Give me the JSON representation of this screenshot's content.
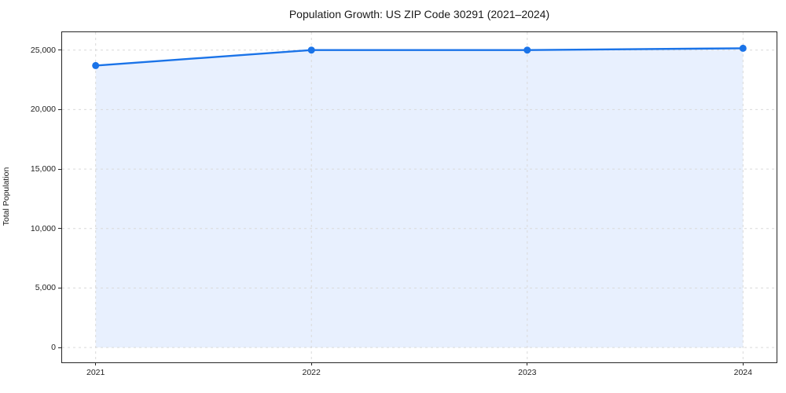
{
  "chart_data": {
    "type": "line",
    "title": "Population Growth: US ZIP Code 30291 (2021–2024)",
    "xlabel": "",
    "ylabel": "Total Population",
    "categories": [
      "2021",
      "2022",
      "2023",
      "2024"
    ],
    "series": [
      {
        "name": "Total Population",
        "values": [
          23700,
          25000,
          25000,
          25150
        ]
      }
    ],
    "area_fill": true,
    "area_baseline": 0,
    "markers": true,
    "grid": true,
    "grid_style": "dashed",
    "legend": false,
    "ylim": [
      -1250,
      26500
    ],
    "yticks": [
      0,
      5000,
      10000,
      15000,
      20000,
      25000
    ],
    "ytick_labels": [
      "0",
      "5,000",
      "10,000",
      "15,000",
      "20,000",
      "25,000"
    ],
    "colors": {
      "line": "#1a73e8",
      "fill": "#e8f0fe",
      "grid": "#d9d9d9",
      "axis": "#262626",
      "text": "#1a1a1a"
    }
  }
}
